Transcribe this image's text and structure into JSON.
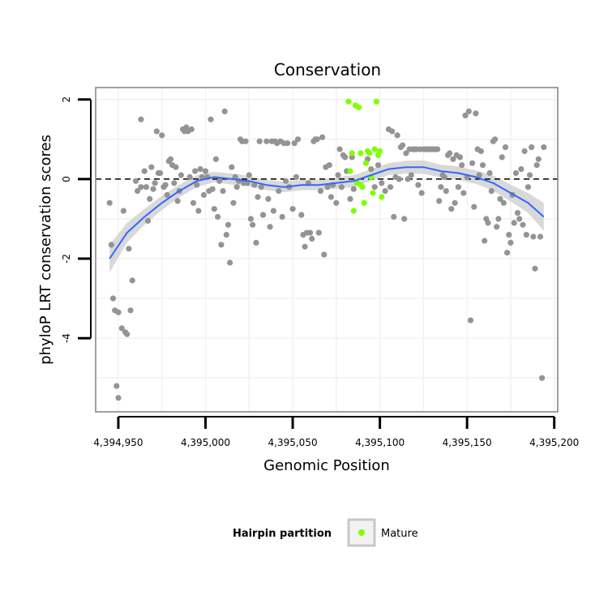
{
  "chart_data": {
    "type": "scatter",
    "title": "Conservation",
    "xlabel": "Genomic Position",
    "ylabel": "phyloP LRT conservation scores",
    "xlim": [
      4394937,
      4395202
    ],
    "ylim": [
      -5.85,
      2.3
    ],
    "xticks": [
      {
        "value": 4394950,
        "label": "4,394,950"
      },
      {
        "value": 4395000,
        "label": "4,395,000"
      },
      {
        "value": 4395050,
        "label": "4,395,050"
      },
      {
        "value": 4395100,
        "label": "4,395,100"
      },
      {
        "value": 4395150,
        "label": "4,395,150"
      },
      {
        "value": 4395200,
        "label": "4,395,200"
      }
    ],
    "yticks": [
      {
        "value": 2,
        "label": "2"
      },
      {
        "value": 0,
        "label": "0"
      },
      {
        "value": -2,
        "label": "-2"
      },
      {
        "value": -4,
        "label": "-4"
      }
    ],
    "reference_line_y": 0,
    "grid": true,
    "colors": {
      "background": "#ffffff",
      "panel_border": "#808080",
      "grid": "#f2f2f2",
      "points_other": "#949494",
      "points_mature": "#7fff00",
      "smooth_line": "#3366ff",
      "smooth_band": "#cccccc",
      "reference_line": "#000000"
    },
    "series": [
      {
        "role": "other",
        "points": [
          [
            4394945,
            -0.6
          ],
          [
            4394946,
            -1.65
          ],
          [
            4394947,
            -3.0
          ],
          [
            4394948,
            -3.3
          ],
          [
            4394949,
            -5.2
          ],
          [
            4394950,
            -3.35
          ],
          [
            4394950,
            -5.5
          ],
          [
            4394952,
            -3.75
          ],
          [
            4394953,
            -0.8
          ],
          [
            4394954,
            -3.85
          ],
          [
            4394955,
            -3.9
          ],
          [
            4394956,
            -1.75
          ],
          [
            4394957,
            -3.3
          ],
          [
            4394958,
            -2.55
          ],
          [
            4394960,
            -0.05
          ],
          [
            4394961,
            -0.3
          ],
          [
            4394963,
            1.5
          ],
          [
            4394963,
            -0.2
          ],
          [
            4394965,
            0.2
          ],
          [
            4394966,
            -0.2
          ],
          [
            4394967,
            -1.05
          ],
          [
            4394968,
            -0.5
          ],
          [
            4394969,
            0.3
          ],
          [
            4394970,
            -0.25
          ],
          [
            4394971,
            -0.1
          ],
          [
            4394972,
            1.2
          ],
          [
            4394973,
            0.15
          ],
          [
            4394974,
            0.15
          ],
          [
            4394975,
            1.1
          ],
          [
            4394976,
            -0.2
          ],
          [
            4394977,
            -0.15
          ],
          [
            4394978,
            -0.4
          ],
          [
            4394979,
            0.45
          ],
          [
            4394980,
            0.5
          ],
          [
            4394981,
            0.35
          ],
          [
            4394982,
            -0.1
          ],
          [
            4394983,
            0.3
          ],
          [
            4394984,
            -0.55
          ],
          [
            4394985,
            -0.3
          ],
          [
            4394986,
            0.1
          ],
          [
            4394987,
            1.25
          ],
          [
            4394988,
            1.2
          ],
          [
            4394989,
            1.3
          ],
          [
            4394990,
            1.2
          ],
          [
            4394991,
            0.05
          ],
          [
            4394992,
            1.25
          ],
          [
            4394993,
            -0.6
          ],
          [
            4394994,
            0.2
          ],
          [
            4394995,
            -0.15
          ],
          [
            4394996,
            -0.8
          ],
          [
            4394997,
            0.25
          ],
          [
            4394998,
            0.05
          ],
          [
            4394999,
            -0.4
          ],
          [
            4395000,
            0.2
          ],
          [
            4395001,
            0.05
          ],
          [
            4395002,
            -0.3
          ],
          [
            4395003,
            1.5
          ],
          [
            4395004,
            -0.25
          ],
          [
            4395005,
            -0.75
          ],
          [
            4395006,
            0.5
          ],
          [
            4395007,
            -0.95
          ],
          [
            4395008,
            -0.05
          ],
          [
            4395009,
            -1.65
          ],
          [
            4395010,
            -0.3
          ],
          [
            4395011,
            1.7
          ],
          [
            4395012,
            -1.4
          ],
          [
            4395013,
            -1.15
          ],
          [
            4395014,
            -2.1
          ],
          [
            4395015,
            0.3
          ],
          [
            4395016,
            -0.6
          ],
          [
            4395017,
            0.05
          ],
          [
            4395018,
            -0.2
          ],
          [
            4395019,
            -0.05
          ],
          [
            4395020,
            1.0
          ],
          [
            4395021,
            0.95
          ],
          [
            4395022,
            -0.1
          ],
          [
            4395023,
            0.95
          ],
          [
            4395024,
            -0.1
          ],
          [
            4395025,
            0.1
          ],
          [
            4395026,
            -1.0
          ],
          [
            4395027,
            -1.15
          ],
          [
            4395028,
            -0.15
          ],
          [
            4395029,
            -1.6
          ],
          [
            4395030,
            -0.45
          ],
          [
            4395031,
            0.95
          ],
          [
            4395032,
            -0.2
          ],
          [
            4395033,
            -0.9
          ],
          [
            4395035,
            0.95
          ],
          [
            4395036,
            -0.5
          ],
          [
            4395037,
            -1.2
          ],
          [
            4395038,
            0.95
          ],
          [
            4395039,
            -0.8
          ],
          [
            4395040,
            0.95
          ],
          [
            4395041,
            0.9
          ],
          [
            4395042,
            -0.3
          ],
          [
            4395043,
            0.95
          ],
          [
            4395044,
            -0.95
          ],
          [
            4395045,
            0.9
          ],
          [
            4395046,
            -0.05
          ],
          [
            4395047,
            0.9
          ],
          [
            4395048,
            -0.2
          ],
          [
            4395050,
            -0.75
          ],
          [
            4395051,
            0.9
          ],
          [
            4395052,
            0.05
          ],
          [
            4395053,
            1.0
          ],
          [
            4395055,
            -0.9
          ],
          [
            4395056,
            -1.4
          ],
          [
            4395057,
            -1.7
          ],
          [
            4395058,
            -1.35
          ],
          [
            4395059,
            -0.1
          ],
          [
            4395060,
            -1.35
          ],
          [
            4395061,
            -1.5
          ],
          [
            4395062,
            0.95
          ],
          [
            4395063,
            1.0
          ],
          [
            4395064,
            1.0
          ],
          [
            4395065,
            -1.35
          ],
          [
            4395066,
            -0.3
          ],
          [
            4395067,
            1.05
          ],
          [
            4395068,
            -1.9
          ],
          [
            4395069,
            0.3
          ],
          [
            4395070,
            -0.2
          ],
          [
            4395071,
            0.35
          ],
          [
            4395072,
            -0.45
          ],
          [
            4395073,
            -0.15
          ],
          [
            4395075,
            -0.6
          ],
          [
            4395076,
            0.1
          ],
          [
            4395077,
            0.75
          ],
          [
            4395078,
            -0.2
          ],
          [
            4395079,
            0.6
          ],
          [
            4395080,
            0.55
          ],
          [
            4395081,
            0.2
          ],
          [
            4395083,
            -0.5
          ],
          [
            4395084,
            0.55
          ],
          [
            4395085,
            -0.25
          ],
          [
            4395093,
            0.5
          ],
          [
            4395095,
            0.25
          ],
          [
            4395097,
            -0.2
          ],
          [
            4395099,
            0.35
          ],
          [
            4395101,
            -0.1
          ],
          [
            4395103,
            -0.3
          ],
          [
            4395105,
            1.25
          ],
          [
            4395106,
            -0.2
          ],
          [
            4395107,
            1.2
          ],
          [
            4395108,
            -0.95
          ],
          [
            4395109,
            0.05
          ],
          [
            4395110,
            1.1
          ],
          [
            4395111,
            0.0
          ],
          [
            4395112,
            0.8
          ],
          [
            4395113,
            0.85
          ],
          [
            4395114,
            -1.0
          ],
          [
            4395115,
            0.65
          ],
          [
            4395116,
            0.0
          ],
          [
            4395117,
            0.75
          ],
          [
            4395118,
            0.1
          ],
          [
            4395119,
            0.75
          ],
          [
            4395120,
            0.75
          ],
          [
            4395121,
            0.75
          ],
          [
            4395122,
            -0.15
          ],
          [
            4395123,
            0.75
          ],
          [
            4395124,
            -0.35
          ],
          [
            4395125,
            0.75
          ],
          [
            4395126,
            0.75
          ],
          [
            4395127,
            0.75
          ],
          [
            4395128,
            0.75
          ],
          [
            4395129,
            0.75
          ],
          [
            4395130,
            0.75
          ],
          [
            4395131,
            0.75
          ],
          [
            4395132,
            0.75
          ],
          [
            4395133,
            0.75
          ],
          [
            4395134,
            -0.55
          ],
          [
            4395135,
            -0.2
          ],
          [
            4395136,
            0.1
          ],
          [
            4395137,
            0.05
          ],
          [
            4395138,
            -0.3
          ],
          [
            4395139,
            0.6
          ],
          [
            4395140,
            0.65
          ],
          [
            4395141,
            -0.75
          ],
          [
            4395142,
            0.5
          ],
          [
            4395143,
            -0.6
          ],
          [
            4395144,
            0.6
          ],
          [
            4395145,
            -0.2
          ],
          [
            4395146,
            0.55
          ],
          [
            4395147,
            0.35
          ],
          [
            4395148,
            -0.35
          ],
          [
            4395149,
            1.6
          ],
          [
            4395150,
            0.05
          ],
          [
            4395151,
            1.7
          ],
          [
            4395152,
            -3.55
          ],
          [
            4395153,
            0.4
          ],
          [
            4395154,
            -0.7
          ],
          [
            4395155,
            1.65
          ],
          [
            4395156,
            0.75
          ],
          [
            4395157,
            0.1
          ],
          [
            4395158,
            0.7
          ],
          [
            4395159,
            0.35
          ],
          [
            4395160,
            -1.55
          ],
          [
            4395161,
            -1.0
          ],
          [
            4395162,
            -1.1
          ],
          [
            4395163,
            0.15
          ],
          [
            4395164,
            -0.3
          ],
          [
            4395165,
            0.95
          ],
          [
            4395166,
            1.0
          ],
          [
            4395167,
            -1.2
          ],
          [
            4395168,
            -1.0
          ],
          [
            4395169,
            -0.5
          ],
          [
            4395170,
            0.55
          ],
          [
            4395171,
            -0.6
          ],
          [
            4395172,
            0.8
          ],
          [
            4395173,
            -1.85
          ],
          [
            4395174,
            -1.4
          ],
          [
            4395175,
            -1.6
          ],
          [
            4395176,
            -0.4
          ],
          [
            4395177,
            -1.1
          ],
          [
            4395178,
            0.15
          ],
          [
            4395179,
            -0.85
          ],
          [
            4395180,
            -1.0
          ],
          [
            4395181,
            0.25
          ],
          [
            4395182,
            -1.15
          ],
          [
            4395183,
            0.7
          ],
          [
            4395184,
            -1.4
          ],
          [
            4395185,
            -0.2
          ],
          [
            4395186,
            0.1
          ],
          [
            4395187,
            0.8
          ],
          [
            4395188,
            -1.45
          ],
          [
            4395189,
            -2.25
          ],
          [
            4395190,
            0.35
          ],
          [
            4395191,
            0.5
          ],
          [
            4395192,
            -1.45
          ],
          [
            4395193,
            -5.0
          ],
          [
            4395194,
            0.8
          ]
        ]
      },
      {
        "name": "Mature",
        "role": "mature",
        "points": [
          [
            4395082,
            1.95
          ],
          [
            4395083,
            0.2
          ],
          [
            4395084,
            0.65
          ],
          [
            4395085,
            -0.8
          ],
          [
            4395086,
            1.85
          ],
          [
            4395087,
            -0.1
          ],
          [
            4395088,
            1.8
          ],
          [
            4395089,
            -0.15
          ],
          [
            4395089,
            0.65
          ],
          [
            4395090,
            -0.2
          ],
          [
            4395091,
            -0.6
          ],
          [
            4395092,
            0.4
          ],
          [
            4395093,
            0.7
          ],
          [
            4395094,
            0.65
          ],
          [
            4395095,
            0.05
          ],
          [
            4395096,
            -0.35
          ],
          [
            4395097,
            0.75
          ],
          [
            4395098,
            1.95
          ],
          [
            4395099,
            0.6
          ],
          [
            4395100,
            0.7
          ],
          [
            4395101,
            -0.45
          ]
        ]
      }
    ],
    "smooth": {
      "x": [
        4394945,
        4394955,
        4394965,
        4394975,
        4394985,
        4394995,
        4395005,
        4395015,
        4395025,
        4395035,
        4395045,
        4395055,
        4395065,
        4395075,
        4395085,
        4395095,
        4395105,
        4395115,
        4395125,
        4395135,
        4395145,
        4395155,
        4395165,
        4395175,
        4395185,
        4395194
      ],
      "y": [
        -2.0,
        -1.35,
        -0.95,
        -0.6,
        -0.3,
        -0.05,
        0.05,
        0.0,
        -0.05,
        -0.15,
        -0.2,
        -0.15,
        -0.15,
        -0.1,
        -0.05,
        0.1,
        0.25,
        0.3,
        0.3,
        0.2,
        0.15,
        0.05,
        -0.1,
        -0.35,
        -0.6,
        -0.95
      ],
      "lo": [
        -2.35,
        -1.6,
        -1.15,
        -0.78,
        -0.46,
        -0.2,
        -0.08,
        -0.14,
        -0.18,
        -0.28,
        -0.33,
        -0.28,
        -0.28,
        -0.24,
        -0.2,
        -0.05,
        0.1,
        0.14,
        0.13,
        0.04,
        -0.02,
        -0.12,
        -0.29,
        -0.56,
        -0.85,
        -1.3
      ],
      "hi": [
        -1.65,
        -1.1,
        -0.75,
        -0.42,
        -0.14,
        0.1,
        0.18,
        0.14,
        0.08,
        -0.02,
        -0.07,
        -0.02,
        -0.02,
        0.04,
        0.1,
        0.25,
        0.4,
        0.46,
        0.47,
        0.36,
        0.32,
        0.22,
        0.09,
        -0.14,
        -0.35,
        -0.6
      ]
    },
    "legend": {
      "position": "bottom",
      "title": "Hairpin partition",
      "entries": [
        {
          "label": "Mature",
          "color": "#7fff00"
        }
      ]
    }
  }
}
